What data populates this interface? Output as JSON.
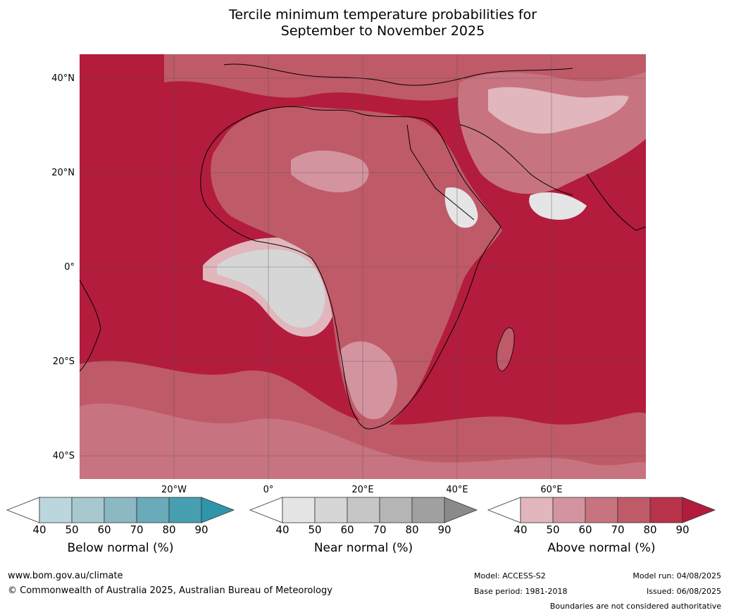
{
  "title_line1": "Tercile minimum temperature probabilities for",
  "title_line2": "September to November 2025",
  "lat_labels": [
    "40°N",
    "20°N",
    "0°",
    "20°S",
    "40°S"
  ],
  "lon_labels": [
    "20°W",
    "0°",
    "20°E",
    "40°E",
    "60°E"
  ],
  "legends": [
    {
      "title": "Below normal (%)",
      "ticks": [
        "40",
        "50",
        "60",
        "70",
        "80",
        "90"
      ],
      "colors": [
        "#ffffff",
        "#bcd6dd",
        "#a7c8ce",
        "#8bb8c3",
        "#6aaab9",
        "#459fb1",
        "#2f95ab"
      ]
    },
    {
      "title": "Near normal (%)",
      "ticks": [
        "40",
        "50",
        "60",
        "70",
        "80",
        "90"
      ],
      "colors": [
        "#ffffff",
        "#e5e5e5",
        "#d6d6d6",
        "#c6c6c6",
        "#b5b5b5",
        "#a0a0a0",
        "#8a8a8a"
      ]
    },
    {
      "title": "Above normal (%)",
      "ticks": [
        "40",
        "50",
        "60",
        "70",
        "80",
        "90"
      ],
      "colors": [
        "#ffffff",
        "#e1b6bd",
        "#d3949f",
        "#c87480",
        "#bf5a69",
        "#b83249",
        "#b31c3c"
      ]
    }
  ],
  "footer": {
    "url": "www.bom.gov.au/climate",
    "copyright": "© Commonwealth of Australia 2025, Australian Bureau of Meteorology",
    "model": "Model: ACCESS-S2",
    "base_period": "Base period: 1981-2018",
    "model_run": "Model run: 04/08/2025",
    "issued": "Issued: 06/08/2025",
    "disclaimer": "Boundaries are not considered authoritative"
  },
  "map_colors": {
    "ocean_dominant": "#b31c3c",
    "above_80": "#b83249",
    "above_70": "#bf5a69",
    "above_60": "#c87480",
    "above_50": "#d3949f",
    "above_40": "#e1b6bd",
    "near_50": "#e5e5e5",
    "near_60": "#d6d6d6",
    "grid": "#555555",
    "coast": "#000000",
    "borders": "#7a7a7a"
  }
}
